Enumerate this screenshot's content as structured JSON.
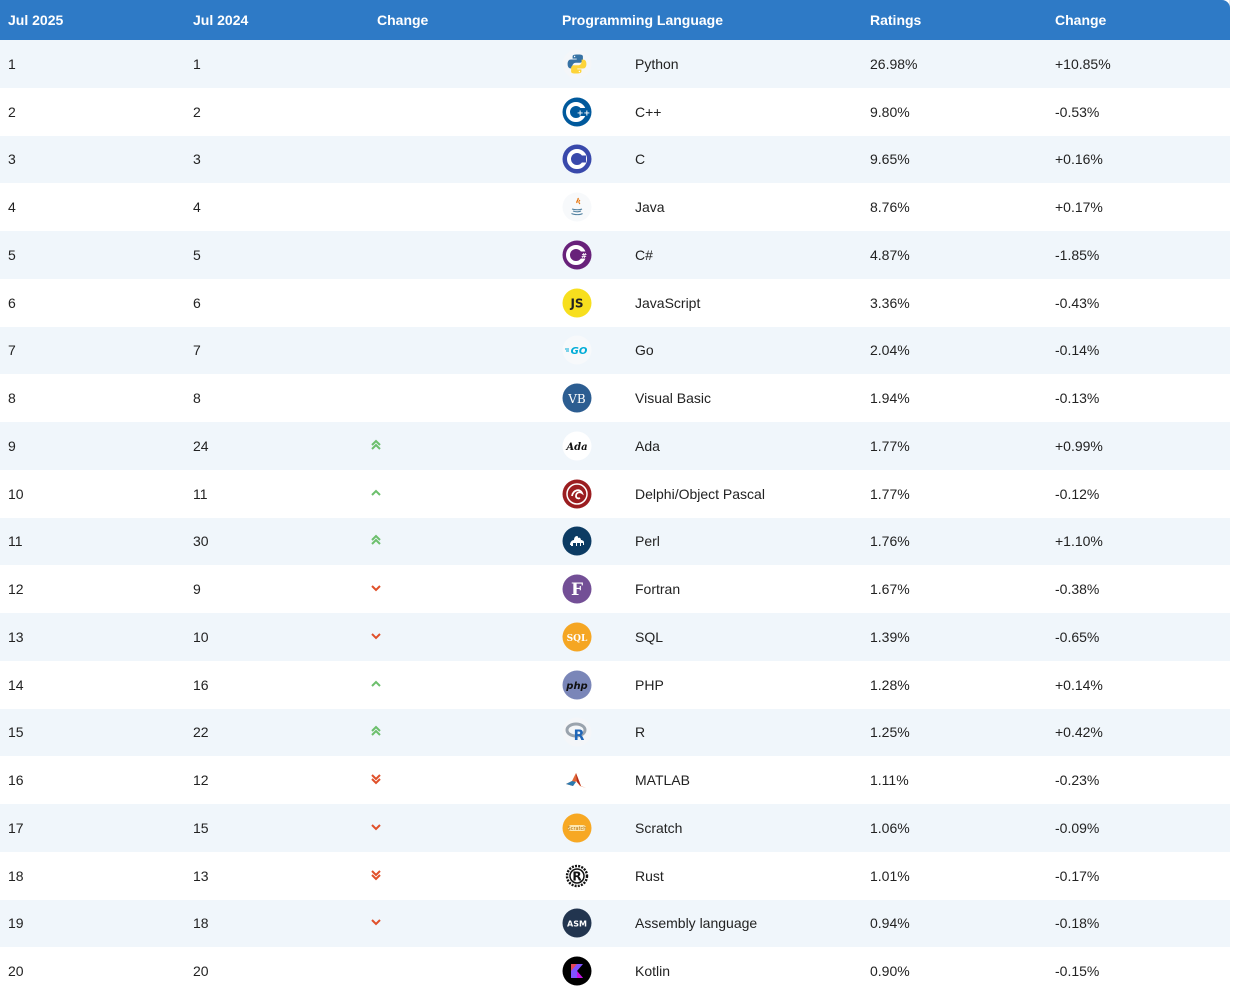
{
  "table": {
    "headers": {
      "jul2025": "Jul 2025",
      "jul2024": "Jul 2024",
      "change": "Change",
      "language": "Programming Language",
      "ratings": "Ratings",
      "ratings_change": "Change"
    },
    "rows": [
      {
        "rank_2025": "1",
        "rank_2024": "1",
        "trend": "none",
        "icon": "python-icon",
        "language": "Python",
        "rating": "26.98%",
        "change": "+10.85%"
      },
      {
        "rank_2025": "2",
        "rank_2024": "2",
        "trend": "none",
        "icon": "cplusplus-icon",
        "language": "C++",
        "rating": "9.80%",
        "change": "-0.53%"
      },
      {
        "rank_2025": "3",
        "rank_2024": "3",
        "trend": "none",
        "icon": "c-icon",
        "language": "C",
        "rating": "9.65%",
        "change": "+0.16%"
      },
      {
        "rank_2025": "4",
        "rank_2024": "4",
        "trend": "none",
        "icon": "java-icon",
        "language": "Java",
        "rating": "8.76%",
        "change": "+0.17%"
      },
      {
        "rank_2025": "5",
        "rank_2024": "5",
        "trend": "none",
        "icon": "csharp-icon",
        "language": "C#",
        "rating": "4.87%",
        "change": "-1.85%"
      },
      {
        "rank_2025": "6",
        "rank_2024": "6",
        "trend": "none",
        "icon": "javascript-icon",
        "language": "JavaScript",
        "rating": "3.36%",
        "change": "-0.43%"
      },
      {
        "rank_2025": "7",
        "rank_2024": "7",
        "trend": "none",
        "icon": "go-icon",
        "language": "Go",
        "rating": "2.04%",
        "change": "-0.14%"
      },
      {
        "rank_2025": "8",
        "rank_2024": "8",
        "trend": "none",
        "icon": "visual-basic-icon",
        "language": "Visual Basic",
        "rating": "1.94%",
        "change": "-0.13%"
      },
      {
        "rank_2025": "9",
        "rank_2024": "24",
        "trend": "up-double",
        "icon": "ada-icon",
        "language": "Ada",
        "rating": "1.77%",
        "change": "+0.99%"
      },
      {
        "rank_2025": "10",
        "rank_2024": "11",
        "trend": "up",
        "icon": "delphi-icon",
        "language": "Delphi/Object Pascal",
        "rating": "1.77%",
        "change": "-0.12%"
      },
      {
        "rank_2025": "11",
        "rank_2024": "30",
        "trend": "up-double",
        "icon": "perl-icon",
        "language": "Perl",
        "rating": "1.76%",
        "change": "+1.10%"
      },
      {
        "rank_2025": "12",
        "rank_2024": "9",
        "trend": "down",
        "icon": "fortran-icon",
        "language": "Fortran",
        "rating": "1.67%",
        "change": "-0.38%"
      },
      {
        "rank_2025": "13",
        "rank_2024": "10",
        "trend": "down",
        "icon": "sql-icon",
        "language": "SQL",
        "rating": "1.39%",
        "change": "-0.65%"
      },
      {
        "rank_2025": "14",
        "rank_2024": "16",
        "trend": "up",
        "icon": "php-icon",
        "language": "PHP",
        "rating": "1.28%",
        "change": "+0.14%"
      },
      {
        "rank_2025": "15",
        "rank_2024": "22",
        "trend": "up-double",
        "icon": "r-icon",
        "language": "R",
        "rating": "1.25%",
        "change": "+0.42%"
      },
      {
        "rank_2025": "16",
        "rank_2024": "12",
        "trend": "down-double",
        "icon": "matlab-icon",
        "language": "MATLAB",
        "rating": "1.11%",
        "change": "-0.23%"
      },
      {
        "rank_2025": "17",
        "rank_2024": "15",
        "trend": "down",
        "icon": "scratch-icon",
        "language": "Scratch",
        "rating": "1.06%",
        "change": "-0.09%"
      },
      {
        "rank_2025": "18",
        "rank_2024": "13",
        "trend": "down-double",
        "icon": "rust-icon",
        "language": "Rust",
        "rating": "1.01%",
        "change": "-0.17%"
      },
      {
        "rank_2025": "19",
        "rank_2024": "18",
        "trend": "down",
        "icon": "assembly-icon",
        "language": "Assembly language",
        "rating": "0.94%",
        "change": "-0.18%"
      },
      {
        "rank_2025": "20",
        "rank_2024": "20",
        "trend": "none",
        "icon": "kotlin-icon",
        "language": "Kotlin",
        "rating": "0.90%",
        "change": "-0.15%"
      }
    ]
  },
  "colors": {
    "header_bg": "#2e7ac6",
    "row_alt_bg": "#f0f6fb",
    "arrow_up": "#6cbf6c",
    "arrow_down": "#e0502a"
  }
}
